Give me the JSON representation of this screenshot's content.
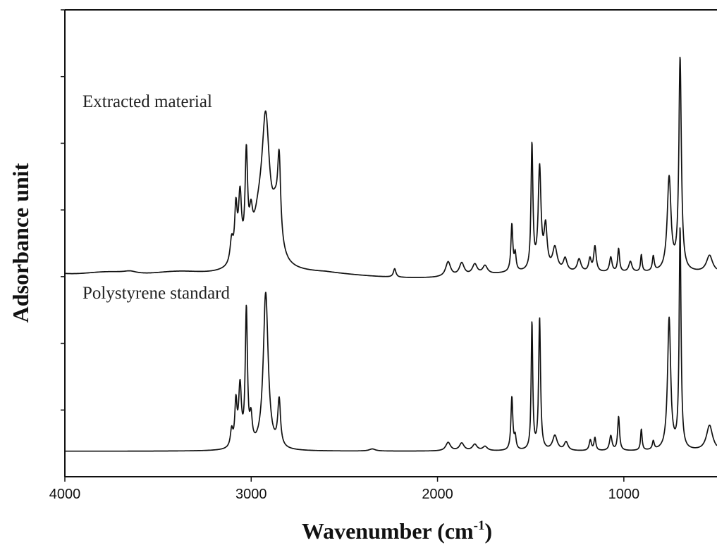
{
  "chart_data": {
    "type": "line",
    "xlabel": "Wavenumber (cm",
    "xlabel_sup": "-1",
    "xlabel_suffix": ")",
    "ylabel": "Adsorbance unit",
    "xlim": [
      4000,
      500
    ],
    "x_reversed": true,
    "xticks": [
      "4000",
      "3000",
      "2000",
      "1000"
    ],
    "xtick_values": [
      4000,
      3000,
      2000,
      1000
    ],
    "ytick_count": 7,
    "grid": false,
    "series": [
      {
        "name": "Extracted material",
        "baseline": 0.0,
        "offset": 4.2,
        "peaks": [
          {
            "x": 3650,
            "h": 0.05,
            "w": 40
          },
          {
            "x": 3105,
            "h": 0.55,
            "w": 10
          },
          {
            "x": 3082,
            "h": 1.2,
            "w": 8
          },
          {
            "x": 3060,
            "h": 1.5,
            "w": 10
          },
          {
            "x": 3026,
            "h": 2.35,
            "w": 8
          },
          {
            "x": 3001,
            "h": 0.7,
            "w": 10
          },
          {
            "x": 2960,
            "h": 0.9,
            "w": 40
          },
          {
            "x": 2922,
            "h": 3.1,
            "w": 25
          },
          {
            "x": 2870,
            "h": 0.9,
            "w": 25
          },
          {
            "x": 2850,
            "h": 1.9,
            "w": 10
          },
          {
            "x": 2230,
            "h": 0.2,
            "w": 8
          },
          {
            "x": 1943,
            "h": 0.35,
            "w": 16
          },
          {
            "x": 1870,
            "h": 0.3,
            "w": 16
          },
          {
            "x": 1800,
            "h": 0.25,
            "w": 16
          },
          {
            "x": 1745,
            "h": 0.2,
            "w": 16
          },
          {
            "x": 1601,
            "h": 1.1,
            "w": 6
          },
          {
            "x": 1583,
            "h": 0.4,
            "w": 6
          },
          {
            "x": 1493,
            "h": 2.95,
            "w": 6
          },
          {
            "x": 1452,
            "h": 2.4,
            "w": 9
          },
          {
            "x": 1420,
            "h": 1.0,
            "w": 10
          },
          {
            "x": 1370,
            "h": 0.55,
            "w": 15
          },
          {
            "x": 1315,
            "h": 0.3,
            "w": 12
          },
          {
            "x": 1240,
            "h": 0.3,
            "w": 12
          },
          {
            "x": 1182,
            "h": 0.3,
            "w": 8
          },
          {
            "x": 1155,
            "h": 0.6,
            "w": 8
          },
          {
            "x": 1070,
            "h": 0.35,
            "w": 8
          },
          {
            "x": 1028,
            "h": 0.55,
            "w": 6
          },
          {
            "x": 965,
            "h": 0.25,
            "w": 10
          },
          {
            "x": 906,
            "h": 0.4,
            "w": 5
          },
          {
            "x": 842,
            "h": 0.35,
            "w": 6
          },
          {
            "x": 757,
            "h": 2.2,
            "w": 12
          },
          {
            "x": 698,
            "h": 5.0,
            "w": 8
          },
          {
            "x": 540,
            "h": 0.4,
            "w": 20
          }
        ]
      },
      {
        "name": "Polystyrene standard",
        "baseline": 0.0,
        "offset": 0.0,
        "peaks": [
          {
            "x": 3105,
            "h": 0.4,
            "w": 8
          },
          {
            "x": 3082,
            "h": 1.0,
            "w": 7
          },
          {
            "x": 3060,
            "h": 1.4,
            "w": 9
          },
          {
            "x": 3026,
            "h": 3.2,
            "w": 7
          },
          {
            "x": 3001,
            "h": 0.6,
            "w": 8
          },
          {
            "x": 2922,
            "h": 3.7,
            "w": 16
          },
          {
            "x": 2850,
            "h": 1.1,
            "w": 9
          },
          {
            "x": 2350,
            "h": 0.05,
            "w": 20
          },
          {
            "x": 1943,
            "h": 0.2,
            "w": 15
          },
          {
            "x": 1870,
            "h": 0.18,
            "w": 15
          },
          {
            "x": 1800,
            "h": 0.15,
            "w": 15
          },
          {
            "x": 1745,
            "h": 0.1,
            "w": 15
          },
          {
            "x": 1601,
            "h": 1.25,
            "w": 6
          },
          {
            "x": 1583,
            "h": 0.3,
            "w": 6
          },
          {
            "x": 1493,
            "h": 3.0,
            "w": 5
          },
          {
            "x": 1452,
            "h": 3.1,
            "w": 6
          },
          {
            "x": 1370,
            "h": 0.35,
            "w": 15
          },
          {
            "x": 1310,
            "h": 0.2,
            "w": 12
          },
          {
            "x": 1180,
            "h": 0.25,
            "w": 7
          },
          {
            "x": 1155,
            "h": 0.3,
            "w": 6
          },
          {
            "x": 1070,
            "h": 0.35,
            "w": 8
          },
          {
            "x": 1028,
            "h": 0.8,
            "w": 6
          },
          {
            "x": 906,
            "h": 0.5,
            "w": 5
          },
          {
            "x": 842,
            "h": 0.2,
            "w": 6
          },
          {
            "x": 757,
            "h": 3.1,
            "w": 10
          },
          {
            "x": 698,
            "h": 5.2,
            "w": 6
          },
          {
            "x": 540,
            "h": 0.6,
            "w": 20
          }
        ]
      }
    ],
    "y_range": [
      -0.6,
      10.4
    ]
  }
}
